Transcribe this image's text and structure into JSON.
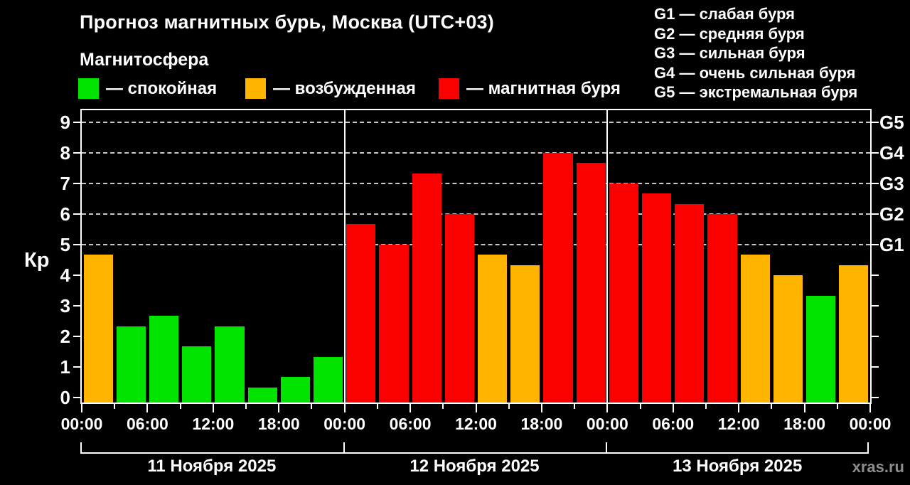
{
  "header": {
    "title": "Прогноз магнитных бурь, Москва (UTC+03)",
    "subtitle": "Магнитосфера"
  },
  "palette": {
    "calm": "#00e400",
    "excited": "#ffb400",
    "storm": "#fa0000"
  },
  "legend": [
    {
      "key": "calm",
      "label": "— спокойная"
    },
    {
      "key": "excited",
      "label": "— возбужденная"
    },
    {
      "key": "storm",
      "label": "— магнитная буря"
    }
  ],
  "storm_scale_legend": [
    "G1 — слабая буря",
    "G2 — средняя буря",
    "G3 — сильная буря",
    "G4 — очень сильная буря",
    "G5 — экстремальная буря"
  ],
  "watermark": "xras.ru",
  "chart_data": {
    "type": "bar",
    "title": "Прогноз магнитных бурь, Москва (UTC+03)",
    "ylabel": "Кр",
    "ylim": [
      0,
      9.5
    ],
    "yticks": [
      0,
      1,
      2,
      3,
      4,
      5,
      6,
      7,
      8,
      9
    ],
    "grid_values": [
      5,
      6,
      7,
      8,
      9
    ],
    "grid": "dashed horizontal at Kp 5-9 only",
    "legend_position": "top",
    "right_axis_ticks": [
      {
        "label": "G1",
        "value": 5
      },
      {
        "label": "G2",
        "value": 6
      },
      {
        "label": "G3",
        "value": 7
      },
      {
        "label": "G4",
        "value": 8
      },
      {
        "label": "G5",
        "value": 9
      }
    ],
    "bar_interval_hours": 3,
    "x_tick_labels": [
      "00:00",
      "06:00",
      "12:00",
      "18:00",
      "00:00",
      "06:00",
      "12:00",
      "18:00",
      "00:00",
      "06:00",
      "12:00",
      "18:00",
      "00:00"
    ],
    "days": [
      {
        "label": "11 Ноября 2025",
        "values": [
          4.67,
          2.33,
          2.67,
          1.67,
          2.33,
          0.33,
          0.67,
          1.33
        ],
        "categories": [
          "excited",
          "calm",
          "calm",
          "calm",
          "calm",
          "calm",
          "calm",
          "calm"
        ]
      },
      {
        "label": "12 Ноября 2025",
        "values": [
          5.67,
          5.0,
          7.33,
          6.0,
          4.67,
          4.33,
          8.0,
          7.67
        ],
        "categories": [
          "storm",
          "storm",
          "storm",
          "storm",
          "excited",
          "excited",
          "storm",
          "storm"
        ]
      },
      {
        "label": "13 Ноября 2025",
        "values": [
          7.0,
          6.67,
          6.33,
          6.0,
          4.67,
          4.0,
          3.33,
          4.33
        ],
        "categories": [
          "storm",
          "storm",
          "storm",
          "storm",
          "excited",
          "excited",
          "calm",
          "excited"
        ]
      }
    ]
  }
}
